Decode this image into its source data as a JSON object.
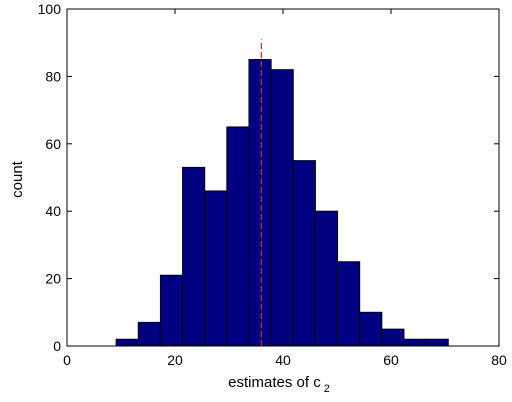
{
  "chart_data": {
    "type": "bar",
    "xlabel": "estimates of c",
    "xlabel_subscript": "2",
    "ylabel": "count",
    "xlim": [
      0,
      80
    ],
    "ylim": [
      0,
      100
    ],
    "xticks": [
      0,
      20,
      40,
      60,
      80
    ],
    "yticks": [
      0,
      20,
      40,
      60,
      80,
      100
    ],
    "bin_edges": [
      9.1,
      13.2,
      17.3,
      21.4,
      25.5,
      29.6,
      33.7,
      37.8,
      41.9,
      46.0,
      50.1,
      54.2,
      58.3,
      62.4,
      66.5,
      70.6
    ],
    "counts": [
      2,
      7,
      21,
      53,
      46,
      65,
      85,
      82,
      55,
      40,
      25,
      10,
      5,
      2,
      2
    ],
    "reference_line": {
      "x": 36.0,
      "y_top": 91,
      "style": "dashed",
      "color": "#d62728"
    },
    "bar_color": "#000080",
    "bar_edge_color": "#000000",
    "grid": false,
    "box": true
  }
}
